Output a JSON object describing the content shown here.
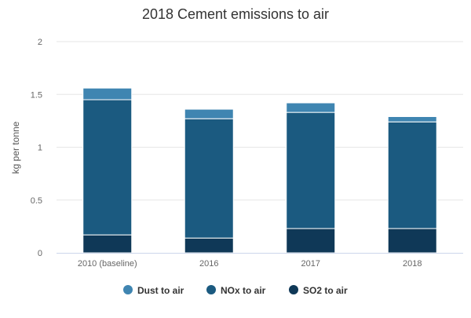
{
  "chart_data": {
    "type": "bar",
    "stacked": true,
    "title": "2018 Cement emissions to air",
    "xlabel": "",
    "ylabel": "kg per tonne",
    "ylim": [
      0,
      2
    ],
    "yticks": [
      0,
      0.5,
      1,
      1.5,
      2
    ],
    "ytick_labels": [
      "0",
      "0.5",
      "1",
      "1.5",
      "2"
    ],
    "grid": true,
    "legend_position": "bottom",
    "categories": [
      "2010 (baseline)",
      "2016",
      "2017",
      "2018"
    ],
    "series": [
      {
        "name": "SO2 to air",
        "color": "#0f3857",
        "values": [
          0.17,
          0.14,
          0.23,
          0.23
        ]
      },
      {
        "name": "NOx to air",
        "color": "#1b5a80",
        "values": [
          1.28,
          1.13,
          1.1,
          1.01
        ]
      },
      {
        "name": "Dust to air",
        "color": "#3f85b1",
        "values": [
          0.11,
          0.09,
          0.09,
          0.05
        ]
      }
    ],
    "legend_order": [
      "Dust to air",
      "NOx to air",
      "SO2 to air"
    ]
  }
}
